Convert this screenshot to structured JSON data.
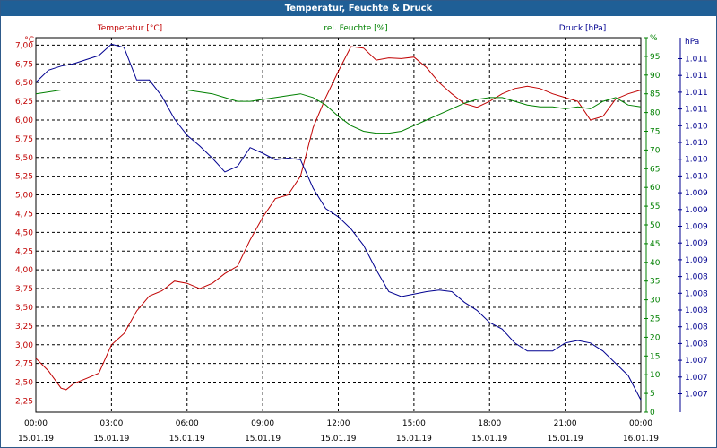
{
  "window": {
    "title": "Temperatur, Feuchte & Druck"
  },
  "chart_data": {
    "type": "line",
    "title": "Temperatur, Feuchte & Druck",
    "x_ticks": [
      {
        "time": "00:00",
        "date": "15.01.19"
      },
      {
        "time": "03:00",
        "date": "15.01.19"
      },
      {
        "time": "06:00",
        "date": "15.01.19"
      },
      {
        "time": "09:00",
        "date": "15.01.19"
      },
      {
        "time": "12:00",
        "date": "15.01.19"
      },
      {
        "time": "15:00",
        "date": "15.01.19"
      },
      {
        "time": "18:00",
        "date": "15.01.19"
      },
      {
        "time": "21:00",
        "date": "15.01.19"
      },
      {
        "time": "00:00",
        "date": "16.01.19"
      }
    ],
    "xlim": [
      0,
      24
    ],
    "axes": {
      "temperature": {
        "label": "Temperatur [°C]",
        "unit": "°C",
        "color": "#c00000",
        "ylim": [
          2.1,
          7.1
        ],
        "ticks": [
          "2,25",
          "2,50",
          "2,75",
          "3,00",
          "3,25",
          "3,50",
          "3,75",
          "4,00",
          "4,25",
          "4,50",
          "4,75",
          "5,00",
          "5,25",
          "5,50",
          "5,75",
          "6,00",
          "6,25",
          "6,50",
          "6,75",
          "7,00"
        ]
      },
      "humidity": {
        "label": "rel. Feuchte [%]",
        "unit": "%",
        "color": "#008000",
        "ylim": [
          0,
          100
        ],
        "ticks": [
          "0",
          "5",
          "10",
          "15",
          "20",
          "25",
          "30",
          "35",
          "40",
          "45",
          "50",
          "55",
          "60",
          "65",
          "70",
          "75",
          "80",
          "85",
          "90",
          "95",
          "%"
        ]
      },
      "pressure": {
        "label": "Druck [hPa]",
        "unit": "hPa",
        "color": "#000090",
        "ylim": [
          1006.8,
          1011.4
        ],
        "ticks": [
          "1.007",
          "1.007",
          "1.007",
          "1.008",
          "1.008",
          "1.008",
          "1.008",
          "1.008",
          "1.009",
          "1.009",
          "1.009",
          "1.009",
          "1.009",
          "1.010",
          "1.010",
          "1.010",
          "1.010",
          "1.011",
          "1.011",
          "1.011",
          "1.011"
        ]
      }
    },
    "grid": true,
    "series": [
      {
        "name": "Temperatur [°C]",
        "axis": "temperature",
        "color": "#c00000",
        "x": [
          0,
          0.5,
          1,
          1.2,
          1.5,
          2,
          2.5,
          3,
          3.5,
          4,
          4.5,
          5,
          5.5,
          6,
          6.5,
          7,
          7.5,
          8,
          8.5,
          9,
          9.5,
          10,
          10.5,
          11,
          11.5,
          12,
          12.5,
          13,
          13.5,
          14,
          14.5,
          15,
          15.5,
          16,
          16.5,
          17,
          17.5,
          18,
          18.5,
          19,
          19.5,
          20,
          20.5,
          21,
          21.5,
          22,
          22.5,
          23,
          23.5,
          24
        ],
        "y": [
          2.82,
          2.65,
          2.42,
          2.4,
          2.48,
          2.55,
          2.62,
          3.0,
          3.15,
          3.45,
          3.65,
          3.72,
          3.85,
          3.82,
          3.75,
          3.82,
          3.95,
          4.05,
          4.4,
          4.7,
          4.95,
          5.0,
          5.25,
          5.9,
          6.3,
          6.65,
          6.98,
          6.96,
          6.8,
          6.83,
          6.82,
          6.84,
          6.7,
          6.5,
          6.35,
          6.22,
          6.17,
          6.25,
          6.35,
          6.42,
          6.45,
          6.42,
          6.35,
          6.3,
          6.25,
          6.0,
          6.05,
          6.28,
          6.35,
          6.4
        ]
      },
      {
        "name": "rel. Feuchte [%]",
        "axis": "humidity",
        "color": "#008000",
        "x": [
          0,
          1,
          1.5,
          2,
          3,
          4,
          5,
          5.5,
          6,
          6.5,
          7,
          7.5,
          8,
          8.5,
          9,
          9.5,
          10,
          10.5,
          11,
          11.5,
          12,
          12.5,
          13,
          13.5,
          14,
          14.5,
          15,
          15.5,
          16,
          16.5,
          17,
          17.5,
          18,
          18.5,
          19,
          19.5,
          20,
          20.5,
          21,
          21.5,
          22,
          22.5,
          23,
          23.5,
          24
        ],
        "y": [
          85,
          86,
          86,
          86,
          86,
          86,
          86,
          86,
          86,
          85.5,
          85,
          84,
          83,
          83,
          83.5,
          84,
          84.5,
          85,
          84,
          82,
          79,
          76.5,
          75,
          74.5,
          74.5,
          75,
          76.5,
          78,
          79.5,
          81,
          82.5,
          83.5,
          84,
          84,
          83,
          82,
          81.5,
          81.5,
          81,
          81.5,
          81,
          83,
          84,
          82,
          81.5
        ]
      },
      {
        "name": "Druck [hPa]",
        "axis": "pressure",
        "color": "#000090",
        "x": [
          0,
          0.5,
          1,
          1.5,
          2,
          2.5,
          3,
          3.5,
          4,
          4.5,
          5,
          5.5,
          6,
          6.5,
          7,
          7.5,
          8,
          8.5,
          9,
          9.5,
          10,
          10.5,
          11,
          11.5,
          12,
          12.5,
          13,
          13.5,
          14,
          14.5,
          15,
          15.5,
          16,
          16.5,
          17,
          17.5,
          18,
          18.5,
          19,
          19.5,
          20,
          20.5,
          21,
          21.5,
          22,
          22.5,
          23,
          23.5,
          24
        ],
        "y": [
          1010.85,
          1011.0,
          1011.05,
          1011.08,
          1011.13,
          1011.18,
          1011.32,
          1011.28,
          1010.88,
          1010.88,
          1010.68,
          1010.4,
          1010.2,
          1010.07,
          1009.92,
          1009.75,
          1009.82,
          1010.05,
          1009.98,
          1009.9,
          1009.92,
          1009.9,
          1009.55,
          1009.3,
          1009.2,
          1009.05,
          1008.85,
          1008.55,
          1008.28,
          1008.22,
          1008.25,
          1008.28,
          1008.3,
          1008.28,
          1008.15,
          1008.05,
          1007.9,
          1007.82,
          1007.65,
          1007.55,
          1007.55,
          1007.55,
          1007.65,
          1007.68,
          1007.65,
          1007.55,
          1007.4,
          1007.25,
          1006.95
        ]
      }
    ]
  }
}
